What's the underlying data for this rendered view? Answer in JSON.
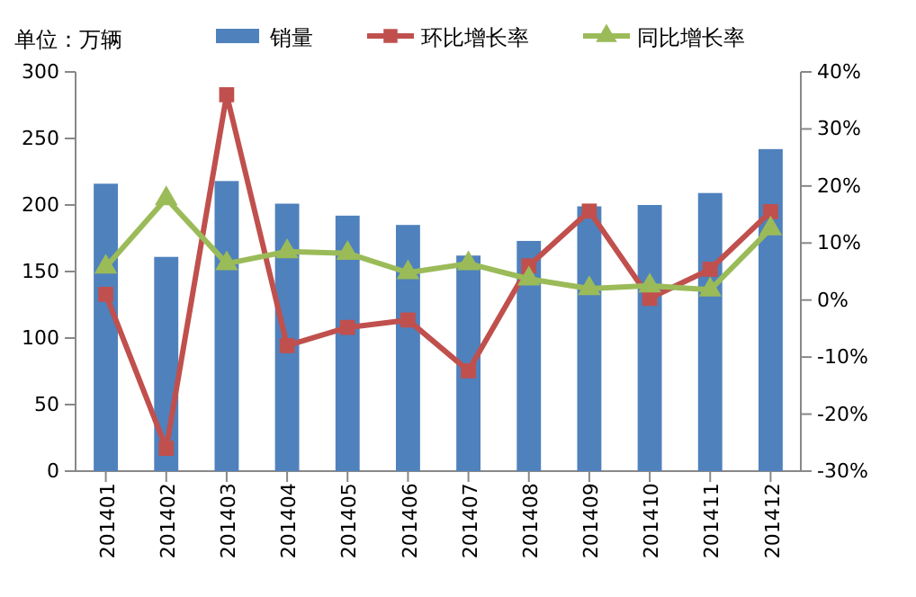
{
  "chart_data": {
    "type": "bar",
    "categories": [
      "201401",
      "201402",
      "201403",
      "201404",
      "201405",
      "201406",
      "201407",
      "201408",
      "201409",
      "201410",
      "201411",
      "201412"
    ],
    "series": [
      {
        "name": "销量",
        "color": "#4f81bd",
        "values": [
          216,
          161,
          218,
          201,
          192,
          185,
          162,
          173,
          199,
          200,
          209,
          242
        ]
      },
      {
        "name": "环比增长率",
        "type": "line",
        "axis": "y2",
        "marker": "square",
        "color": "#c0504d",
        "values": [
          1,
          -26,
          36,
          -8,
          -4.8,
          -3.5,
          -12.4,
          6,
          15.6,
          0.3,
          5.4,
          15.5
        ]
      },
      {
        "name": "同比增长率",
        "type": "line",
        "axis": "y2",
        "marker": "triangle",
        "color": "#9bbb59",
        "values": [
          5.8,
          17.8,
          6.4,
          8.5,
          8.2,
          4.8,
          6.4,
          3.7,
          2,
          2.5,
          1.8,
          12.5
        ]
      }
    ],
    "ylim": [
      0,
      300
    ],
    "yticks": [
      0,
      50,
      100,
      150,
      200,
      250,
      300
    ],
    "y2lim": [
      -30,
      40
    ],
    "y2ticks": [
      {
        "value": -30,
        "label": "-30%"
      },
      {
        "value": -20,
        "label": "-20%"
      },
      {
        "value": -10,
        "label": "-10%"
      },
      {
        "value": 0,
        "label": "0%"
      },
      {
        "value": 10,
        "label": "10%"
      },
      {
        "value": 20,
        "label": "20%"
      },
      {
        "value": 30,
        "label": "30%"
      },
      {
        "value": 40,
        "label": "40%"
      }
    ],
    "annotations": [
      "单位：万辆"
    ],
    "legend": "top"
  }
}
